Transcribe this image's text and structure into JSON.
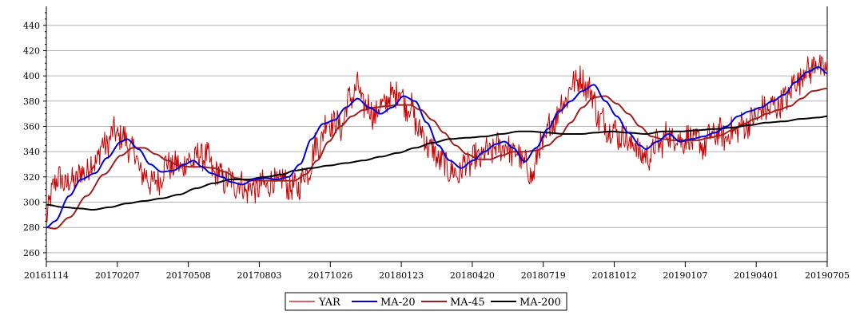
{
  "chart_data": {
    "type": "line",
    "title": "",
    "xlabel": "",
    "ylabel": "",
    "ylim": [
      253,
      455
    ],
    "y_ticks": [
      260,
      280,
      300,
      320,
      340,
      360,
      380,
      400,
      420,
      440
    ],
    "x_tick_labels": [
      "20161114",
      "20170207",
      "20170508",
      "20170803",
      "20171026",
      "20180123",
      "20180420",
      "20180719",
      "20181012",
      "20190107",
      "20190401",
      "20190705"
    ],
    "grid": "horizontal",
    "legend": "bottom-center",
    "series": [
      {
        "name": "YAR",
        "color": "#cc0000",
        "anchors": [
          [
            0,
            287
          ],
          [
            3,
            318
          ],
          [
            8,
            315
          ],
          [
            12,
            322
          ],
          [
            16,
            330
          ],
          [
            20,
            345
          ],
          [
            24,
            355
          ],
          [
            27,
            350
          ],
          [
            30,
            340
          ],
          [
            34,
            320
          ],
          [
            38,
            315
          ],
          [
            42,
            330
          ],
          [
            46,
            328
          ],
          [
            50,
            333
          ],
          [
            55,
            338
          ],
          [
            58,
            325
          ],
          [
            62,
            318
          ],
          [
            66,
            315
          ],
          [
            70,
            310
          ],
          [
            74,
            312
          ],
          [
            78,
            315
          ],
          [
            82,
            317
          ],
          [
            86,
            310
          ],
          [
            90,
            322
          ],
          [
            94,
            345
          ],
          [
            98,
            365
          ],
          [
            102,
            360
          ],
          [
            106,
            385
          ],
          [
            108,
            390
          ],
          [
            110,
            378
          ],
          [
            114,
            370
          ],
          [
            118,
            380
          ],
          [
            122,
            388
          ],
          [
            126,
            375
          ],
          [
            130,
            355
          ],
          [
            134,
            340
          ],
          [
            138,
            330
          ],
          [
            142,
            322
          ],
          [
            146,
            330
          ],
          [
            150,
            335
          ],
          [
            154,
            340
          ],
          [
            158,
            345
          ],
          [
            162,
            340
          ],
          [
            166,
            332
          ],
          [
            168,
            320
          ],
          [
            172,
            345
          ],
          [
            176,
            365
          ],
          [
            180,
            382
          ],
          [
            184,
            398
          ],
          [
            188,
            392
          ],
          [
            190,
            380
          ],
          [
            192,
            365
          ],
          [
            196,
            358
          ],
          [
            200,
            352
          ],
          [
            204,
            345
          ],
          [
            208,
            335
          ],
          [
            212,
            345
          ],
          [
            216,
            353
          ],
          [
            220,
            350
          ],
          [
            224,
            350
          ],
          [
            228,
            345
          ],
          [
            232,
            355
          ],
          [
            236,
            352
          ],
          [
            240,
            358
          ],
          [
            244,
            363
          ],
          [
            248,
            372
          ],
          [
            252,
            375
          ],
          [
            256,
            380
          ],
          [
            260,
            395
          ],
          [
            264,
            405
          ],
          [
            268,
            410
          ],
          [
            271,
            402
          ]
        ]
      },
      {
        "name": "MA-20",
        "color": "#0000dd",
        "anchors": [
          [
            0,
            280
          ],
          [
            3,
            285
          ],
          [
            8,
            305
          ],
          [
            12,
            318
          ],
          [
            17,
            323
          ],
          [
            21,
            335
          ],
          [
            26,
            348
          ],
          [
            28,
            350
          ],
          [
            32,
            342
          ],
          [
            36,
            330
          ],
          [
            40,
            324
          ],
          [
            44,
            325
          ],
          [
            48,
            330
          ],
          [
            51,
            333
          ],
          [
            54,
            328
          ],
          [
            57,
            323
          ],
          [
            61,
            320
          ],
          [
            64,
            316
          ],
          [
            68,
            314
          ],
          [
            72,
            318
          ],
          [
            76,
            319
          ],
          [
            80,
            318
          ],
          [
            84,
            320
          ],
          [
            88,
            330
          ],
          [
            92,
            350
          ],
          [
            96,
            362
          ],
          [
            100,
            365
          ],
          [
            104,
            375
          ],
          [
            108,
            382
          ],
          [
            112,
            375
          ],
          [
            116,
            370
          ],
          [
            120,
            375
          ],
          [
            124,
            384
          ],
          [
            128,
            380
          ],
          [
            132,
            363
          ],
          [
            136,
            345
          ],
          [
            140,
            333
          ],
          [
            144,
            327
          ],
          [
            148,
            333
          ],
          [
            152,
            340
          ],
          [
            156,
            346
          ],
          [
            159,
            348
          ],
          [
            162,
            343
          ],
          [
            166,
            332
          ],
          [
            170,
            343
          ],
          [
            174,
            358
          ],
          [
            178,
            372
          ],
          [
            182,
            380
          ],
          [
            186,
            388
          ],
          [
            190,
            393
          ],
          [
            194,
            380
          ],
          [
            198,
            368
          ],
          [
            202,
            355
          ],
          [
            206,
            345
          ],
          [
            208,
            342
          ],
          [
            212,
            348
          ],
          [
            216,
            354
          ],
          [
            220,
            348
          ],
          [
            224,
            350
          ],
          [
            228,
            352
          ],
          [
            232,
            355
          ],
          [
            236,
            360
          ],
          [
            240,
            368
          ],
          [
            244,
            372
          ],
          [
            248,
            375
          ],
          [
            252,
            380
          ],
          [
            256,
            385
          ],
          [
            260,
            395
          ],
          [
            264,
            403
          ],
          [
            268,
            407
          ],
          [
            271,
            402
          ]
        ]
      },
      {
        "name": "MA-45",
        "color": "#a02020",
        "anchors": [
          [
            0,
            280
          ],
          [
            3,
            279
          ],
          [
            8,
            288
          ],
          [
            14,
            305
          ],
          [
            20,
            322
          ],
          [
            26,
            337
          ],
          [
            30,
            343
          ],
          [
            34,
            343
          ],
          [
            38,
            338
          ],
          [
            42,
            333
          ],
          [
            46,
            329
          ],
          [
            50,
            328
          ],
          [
            54,
            328
          ],
          [
            58,
            327
          ],
          [
            62,
            324
          ],
          [
            66,
            319
          ],
          [
            70,
            317
          ],
          [
            74,
            317
          ],
          [
            78,
            317
          ],
          [
            82,
            317
          ],
          [
            86,
            317
          ],
          [
            90,
            322
          ],
          [
            94,
            333
          ],
          [
            98,
            348
          ],
          [
            102,
            360
          ],
          [
            106,
            368
          ],
          [
            110,
            373
          ],
          [
            114,
            375
          ],
          [
            118,
            376
          ],
          [
            122,
            377
          ],
          [
            126,
            377
          ],
          [
            130,
            373
          ],
          [
            134,
            365
          ],
          [
            138,
            355
          ],
          [
            142,
            345
          ],
          [
            146,
            338
          ],
          [
            150,
            334
          ],
          [
            154,
            334
          ],
          [
            158,
            337
          ],
          [
            162,
            340
          ],
          [
            166,
            340
          ],
          [
            170,
            341
          ],
          [
            174,
            345
          ],
          [
            178,
            352
          ],
          [
            182,
            363
          ],
          [
            186,
            375
          ],
          [
            190,
            383
          ],
          [
            194,
            384
          ],
          [
            198,
            378
          ],
          [
            202,
            370
          ],
          [
            206,
            360
          ],
          [
            210,
            352
          ],
          [
            214,
            350
          ],
          [
            218,
            349
          ],
          [
            222,
            349
          ],
          [
            226,
            349
          ],
          [
            230,
            351
          ],
          [
            234,
            353
          ],
          [
            238,
            357
          ],
          [
            242,
            362
          ],
          [
            246,
            366
          ],
          [
            250,
            370
          ],
          [
            254,
            373
          ],
          [
            258,
            376
          ],
          [
            262,
            382
          ],
          [
            266,
            388
          ],
          [
            271,
            390
          ]
        ]
      },
      {
        "name": "MA-200",
        "color": "#000000",
        "anchors": [
          [
            0,
            298
          ],
          [
            6,
            296
          ],
          [
            12,
            295
          ],
          [
            16,
            294
          ],
          [
            22,
            296
          ],
          [
            28,
            299
          ],
          [
            34,
            301
          ],
          [
            40,
            303
          ],
          [
            46,
            306
          ],
          [
            52,
            311
          ],
          [
            58,
            315
          ],
          [
            64,
            318
          ],
          [
            70,
            318
          ],
          [
            76,
            320
          ],
          [
            82,
            322
          ],
          [
            86,
            325
          ],
          [
            92,
            327
          ],
          [
            98,
            329
          ],
          [
            104,
            331
          ],
          [
            110,
            333
          ],
          [
            116,
            336
          ],
          [
            122,
            339
          ],
          [
            128,
            343
          ],
          [
            134,
            347
          ],
          [
            140,
            350
          ],
          [
            146,
            351
          ],
          [
            152,
            352
          ],
          [
            158,
            354
          ],
          [
            164,
            356
          ],
          [
            168,
            356
          ],
          [
            174,
            355
          ],
          [
            180,
            354
          ],
          [
            186,
            354
          ],
          [
            190,
            355
          ],
          [
            196,
            356
          ],
          [
            202,
            355
          ],
          [
            208,
            354
          ],
          [
            214,
            356
          ],
          [
            220,
            356
          ],
          [
            226,
            357
          ],
          [
            232,
            358
          ],
          [
            238,
            359
          ],
          [
            244,
            361
          ],
          [
            250,
            363
          ],
          [
            256,
            364
          ],
          [
            262,
            366
          ],
          [
            268,
            367
          ],
          [
            271,
            368
          ]
        ]
      }
    ]
  }
}
